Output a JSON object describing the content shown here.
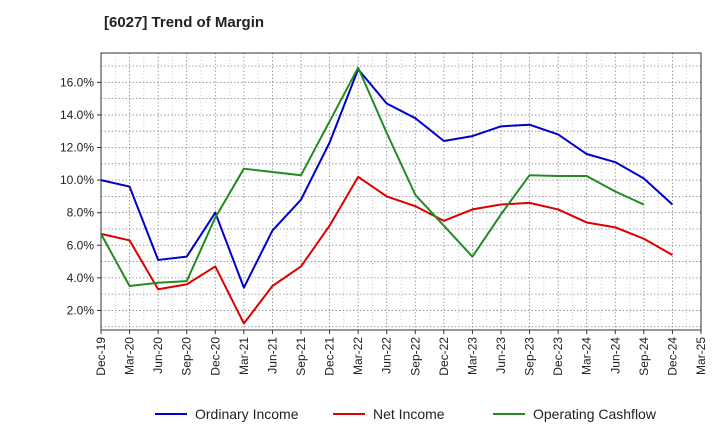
{
  "title": "[6027]  Trend of Margin",
  "chart_data": {
    "type": "line",
    "title": "[6027]  Trend of Margin",
    "xlabel": "",
    "ylabel": "",
    "x": [
      "Dec-19",
      "Mar-20",
      "Jun-20",
      "Sep-20",
      "Dec-20",
      "Mar-21",
      "Jun-21",
      "Sep-21",
      "Dec-21",
      "Mar-22",
      "Jun-22",
      "Sep-22",
      "Dec-22",
      "Mar-23",
      "Jun-23",
      "Sep-23",
      "Dec-23",
      "Mar-24",
      "Jun-24",
      "Sep-24",
      "Dec-24",
      "Mar-25"
    ],
    "y_ticks": [
      "2.0%",
      "4.0%",
      "6.0%",
      "8.0%",
      "10.0%",
      "12.0%",
      "14.0%",
      "16.0%"
    ],
    "ylim": [
      0.8,
      17.8
    ],
    "grid": true,
    "legend_position": "bottom",
    "series": [
      {
        "name": "Ordinary Income",
        "color": "#0000cc",
        "values": [
          10.0,
          9.6,
          5.1,
          5.3,
          8.0,
          3.4,
          6.9,
          8.8,
          12.3,
          16.8,
          14.7,
          13.8,
          12.4,
          12.7,
          13.3,
          13.4,
          12.8,
          11.6,
          11.1,
          10.1,
          8.5,
          null
        ]
      },
      {
        "name": "Net Income",
        "color": "#dd0000",
        "values": [
          6.7,
          6.3,
          3.3,
          3.6,
          4.7,
          1.2,
          3.5,
          4.7,
          7.2,
          10.2,
          9.0,
          8.4,
          7.5,
          8.2,
          8.5,
          8.6,
          8.2,
          7.4,
          7.1,
          6.4,
          5.4,
          null
        ]
      },
      {
        "name": "Operating Cashflow",
        "color": "#228b22",
        "values": [
          6.7,
          3.5,
          3.7,
          3.8,
          7.7,
          10.7,
          10.5,
          10.3,
          13.6,
          16.9,
          12.9,
          9.1,
          7.2,
          5.3,
          7.9,
          10.3,
          10.25,
          10.25,
          9.3,
          8.5,
          null,
          null
        ]
      }
    ]
  }
}
